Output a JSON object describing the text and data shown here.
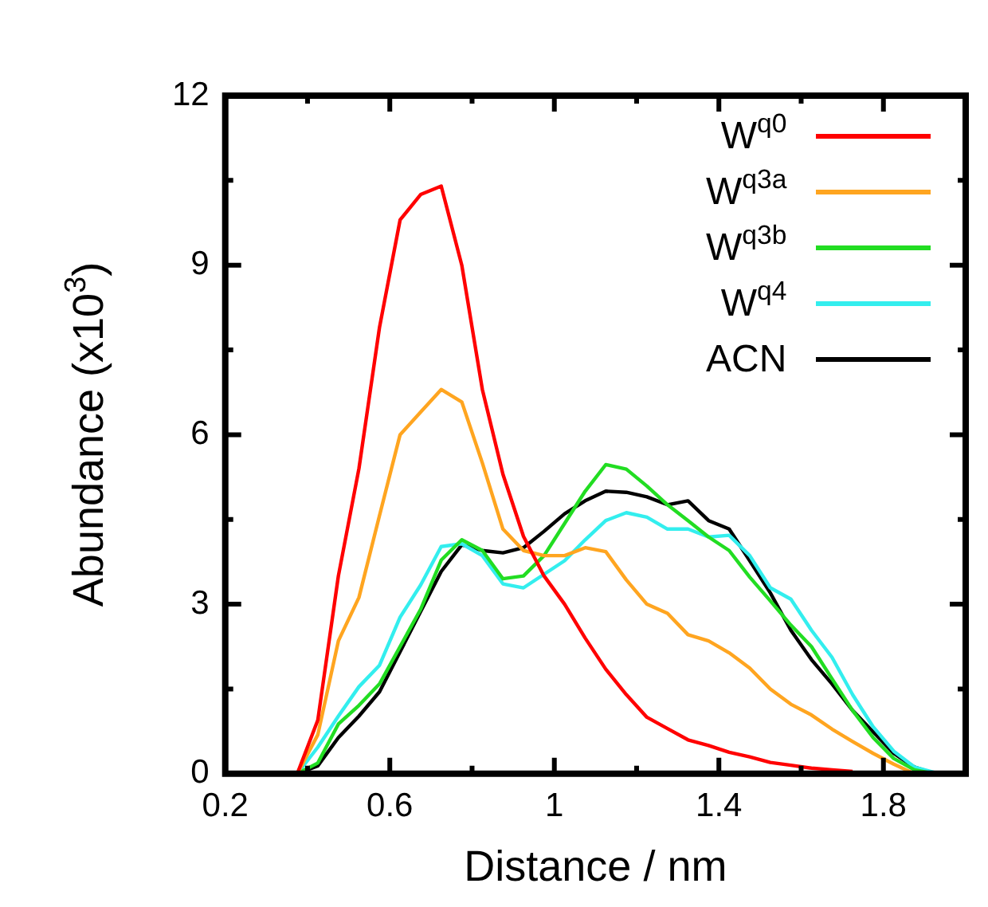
{
  "chart_data": {
    "type": "line",
    "xlabel": "Distance / nm",
    "ylabel": "Abundance (x10$^{3}$)",
    "x": [
      0.375,
      0.425,
      0.475,
      0.525,
      0.575,
      0.625,
      0.675,
      0.725,
      0.775,
      0.825,
      0.875,
      0.925,
      0.975,
      1.025,
      1.075,
      1.125,
      1.175,
      1.225,
      1.275,
      1.325,
      1.375,
      1.425,
      1.475,
      1.525,
      1.575,
      1.625,
      1.675,
      1.725,
      1.775,
      1.825,
      1.875,
      1.925
    ],
    "series": [
      {
        "name": "W$^{q0}$",
        "color": "#ff0000",
        "values": [
          0,
          0.95,
          3.5,
          5.4,
          7.9,
          9.8,
          10.25,
          10.4,
          9.0,
          6.8,
          5.3,
          4.2,
          3.5,
          3.0,
          2.4,
          1.85,
          1.4,
          1.0,
          0.8,
          0.6,
          0.5,
          0.38,
          0.3,
          0.2,
          0.15,
          0.1,
          0.07,
          0.04,
          null,
          null,
          null,
          null
        ]
      },
      {
        "name": "W$^{q3a}$",
        "color": "#ffa520",
        "values": [
          0,
          0.69,
          2.35,
          3.12,
          4.57,
          6.0,
          6.4,
          6.8,
          6.58,
          5.5,
          4.33,
          3.95,
          3.86,
          3.86,
          4.0,
          3.93,
          3.43,
          3.0,
          2.84,
          2.46,
          2.35,
          2.14,
          1.87,
          1.5,
          1.23,
          1.04,
          0.79,
          0.57,
          0.36,
          0.17,
          0,
          null
        ]
      },
      {
        "name": "W$^{q3b}$",
        "color": "#22dd22",
        "values": [
          0,
          0.19,
          0.88,
          1.21,
          1.59,
          2.25,
          2.91,
          3.78,
          4.14,
          3.95,
          3.45,
          3.5,
          3.86,
          4.43,
          5.0,
          5.47,
          5.39,
          5.09,
          4.76,
          4.48,
          4.19,
          3.95,
          3.48,
          3.06,
          2.63,
          2.25,
          1.68,
          1.12,
          0.64,
          0.27,
          0.07,
          0
        ]
      },
      {
        "name": "W$^{q4}$",
        "color": "#33eeee",
        "values": [
          0,
          0.47,
          1.02,
          1.54,
          1.92,
          2.77,
          3.34,
          4.02,
          4.07,
          3.86,
          3.36,
          3.29,
          3.53,
          3.77,
          4.14,
          4.48,
          4.62,
          4.54,
          4.33,
          4.33,
          4.19,
          4.22,
          3.86,
          3.29,
          3.09,
          2.54,
          2.06,
          1.4,
          0.83,
          0.4,
          0.12,
          0.02
        ]
      },
      {
        "name": "ACN",
        "color": "#000000",
        "values": [
          0,
          0.14,
          0.64,
          1.02,
          1.45,
          2.16,
          2.87,
          3.58,
          4.05,
          3.95,
          3.91,
          4.0,
          4.29,
          4.6,
          4.83,
          5.0,
          4.98,
          4.9,
          4.76,
          4.83,
          4.48,
          4.33,
          3.77,
          3.2,
          2.54,
          2.02,
          1.59,
          1.12,
          0.74,
          0.36,
          0.12,
          0
        ]
      }
    ],
    "xlim": [
      0.2,
      2.0
    ],
    "xticks": [
      0.2,
      {
        "value": 0.4,
        "label": null
      },
      0.6,
      {
        "value": 0.8,
        "label": null
      },
      {
        "value": 1.0,
        "label": "1"
      },
      {
        "value": 1.2,
        "label": null
      },
      1.4,
      {
        "value": 1.6,
        "label": null
      },
      1.8,
      {
        "value": 2.0,
        "label": null
      }
    ],
    "ylim": [
      0,
      12
    ],
    "yticks": [
      0,
      {
        "value": 1.5,
        "label": null
      },
      3,
      {
        "value": 4.5,
        "label": null
      },
      6,
      {
        "value": 7.5,
        "label": null
      },
      9,
      {
        "value": 10.5,
        "label": null
      },
      12
    ],
    "grid": false,
    "legend": "top right",
    "marker": "none",
    "line_style": "solid"
  }
}
